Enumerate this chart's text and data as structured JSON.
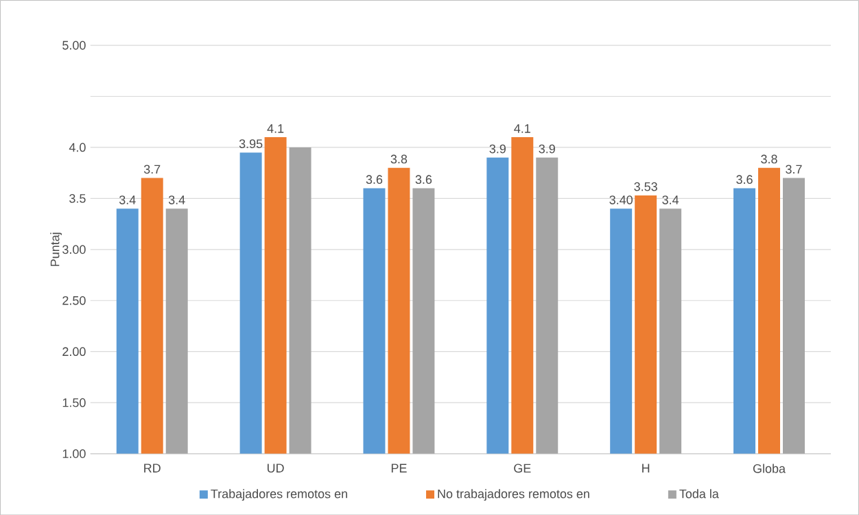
{
  "chart_data": {
    "type": "bar",
    "ylabel": "Puntaj",
    "categories": [
      "RD",
      "UD",
      "PE",
      "GE",
      "H",
      "Globa"
    ],
    "series": [
      {
        "name": "Trabajadores remotos en",
        "color": "#5b9bd5",
        "values": [
          3.4,
          3.95,
          3.6,
          3.9,
          3.4,
          3.6
        ],
        "value_labels": [
          "3.4",
          "3.95",
          "3.6",
          "3.9",
          "3.40",
          "3.6"
        ]
      },
      {
        "name": "No trabajadores remotos en",
        "color": "#ed7d31",
        "values": [
          3.7,
          4.1,
          3.8,
          4.1,
          3.53,
          3.8
        ],
        "value_labels": [
          "3.7",
          "4.1",
          "3.8",
          "4.1",
          "3.53",
          "3.8"
        ]
      },
      {
        "name": "Toda la",
        "color": "#a5a5a5",
        "values": [
          3.4,
          4.0,
          3.6,
          3.9,
          3.4,
          3.7
        ],
        "value_labels": [
          "3.4",
          null,
          "3.6",
          "3.9",
          "3.4",
          "3.7"
        ]
      }
    ],
    "ylim": [
      1,
      5
    ],
    "yticks": [
      {
        "value": 1,
        "label": "1.00"
      },
      {
        "value": 1.5,
        "label": "1.50"
      },
      {
        "value": 2,
        "label": "2.00"
      },
      {
        "value": 2.5,
        "label": "2.50"
      },
      {
        "value": 3,
        "label": "3.00"
      },
      {
        "value": 3.5,
        "label": "3.5"
      },
      {
        "value": 4,
        "label": "4.0"
      },
      {
        "value": 4.5,
        "label": null
      },
      {
        "value": 5,
        "label": "5.00"
      }
    ],
    "grid": "y",
    "legend": "bottom"
  }
}
